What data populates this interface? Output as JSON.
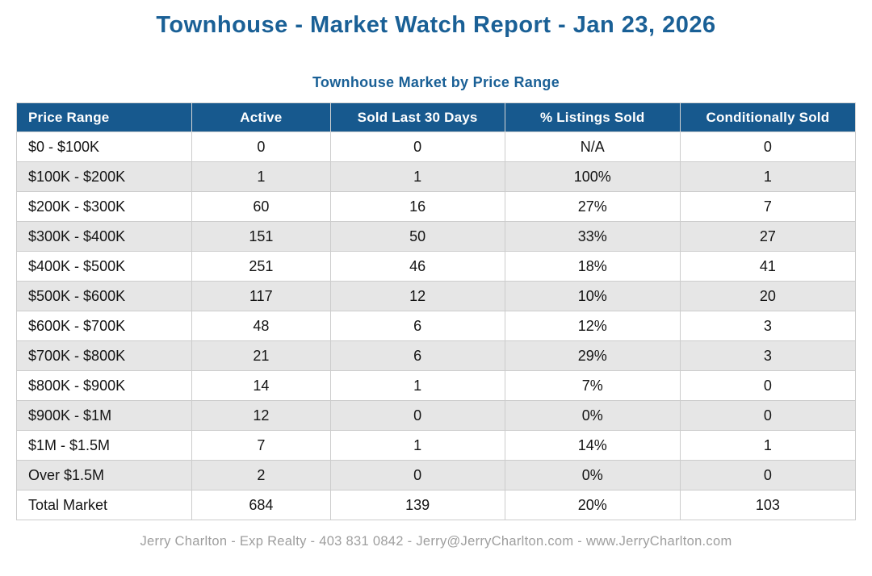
{
  "report": {
    "title": "Townhouse - Market Watch Report - Jan 23, 2026",
    "table_title": "Townhouse Market by Price Range",
    "footer": "Jerry Charlton - Exp Realty - 403 831 0842 - Jerry@JerryCharlton.com - www.JerryCharlton.com"
  },
  "table": {
    "columns": [
      "Price Range",
      "Active",
      "Sold Last 30 Days",
      "% Listings Sold",
      "Conditionally Sold"
    ],
    "column_widths_pct": [
      20.9,
      16.5,
      20.8,
      20.9,
      20.9
    ],
    "rows": [
      [
        "$0 - $100K",
        "0",
        "0",
        "N/A",
        "0"
      ],
      [
        "$100K - $200K",
        "1",
        "1",
        "100%",
        "1"
      ],
      [
        "$200K - $300K",
        "60",
        "16",
        "27%",
        "7"
      ],
      [
        "$300K - $400K",
        "151",
        "50",
        "33%",
        "27"
      ],
      [
        "$400K - $500K",
        "251",
        "46",
        "18%",
        "41"
      ],
      [
        "$500K - $600K",
        "117",
        "12",
        "10%",
        "20"
      ],
      [
        "$600K - $700K",
        "48",
        "6",
        "12%",
        "3"
      ],
      [
        "$700K - $800K",
        "21",
        "6",
        "29%",
        "3"
      ],
      [
        "$800K - $900K",
        "14",
        "1",
        "7%",
        "0"
      ],
      [
        "$900K - $1M",
        "12",
        "0",
        "0%",
        "0"
      ],
      [
        "$1M - $1.5M",
        "7",
        "1",
        "14%",
        "1"
      ],
      [
        "Over $1.5M",
        "2",
        "0",
        "0%",
        "0"
      ],
      [
        "Total Market",
        "684",
        "139",
        "20%",
        "103"
      ]
    ]
  },
  "colors": {
    "header_blue": "#17598E",
    "title_blue": "#1A6096",
    "alt_row_gray": "#E6E6E6",
    "footer_gray": "#9E9E9E",
    "cell_border": "#CCCCCC"
  }
}
